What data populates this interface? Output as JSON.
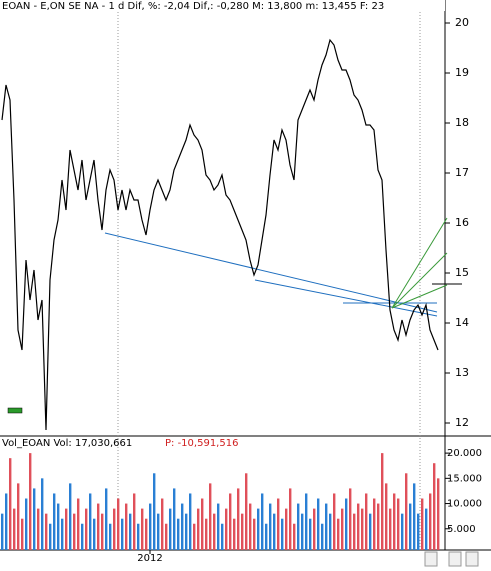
{
  "chart_data": [
    {
      "type": "line",
      "title": "EOAN - E,ON SE NA -  1 d Dif, %: -2,04 Dif,: -0,280 M: 13,800 m: 13,455 F: 23",
      "series": [
        {
          "color": "#000000",
          "values": [
            18.06,
            18.76,
            18.46,
            16.46,
            13.86,
            13.46,
            15.26,
            14.46,
            15.06,
            14.06,
            14.46,
            11.86,
            14.86,
            15.66,
            16.06,
            16.86,
            16.26,
            17.46,
            17.06,
            16.66,
            17.26,
            16.46,
            16.86,
            17.26,
            16.46,
            15.86,
            16.66,
            17.06,
            16.86,
            16.26,
            16.66,
            16.26,
            16.66,
            16.46,
            16.46,
            16.06,
            15.76,
            16.26,
            16.66,
            16.86,
            16.66,
            16.46,
            16.66,
            17.06,
            17.26,
            17.46,
            17.66,
            17.96,
            17.76,
            17.66,
            17.46,
            16.96,
            16.86,
            16.66,
            16.76,
            16.96,
            16.56,
            16.46,
            16.26,
            16.06,
            15.86,
            15.66,
            15.26,
            14.96,
            15.16,
            15.66,
            16.16,
            16.96,
            17.66,
            17.46,
            17.86,
            17.66,
            17.16,
            16.86,
            18.06,
            18.26,
            18.46,
            18.66,
            18.46,
            18.86,
            19.16,
            19.36,
            19.66,
            19.56,
            19.26,
            19.06,
            19.06,
            18.86,
            18.56,
            18.46,
            18.26,
            17.96,
            17.96,
            17.86,
            17.06,
            16.86,
            15.46,
            14.26,
            13.86,
            13.66,
            14.06,
            13.76,
            14.06,
            14.26,
            14.36,
            14.16,
            14.36,
            13.86,
            13.66,
            13.46
          ]
        }
      ],
      "ylim": [
        11.76,
        20.46
      ],
      "yticks": [
        12,
        13,
        14,
        15,
        16,
        17,
        18,
        19,
        20
      ]
    },
    {
      "type": "bar",
      "title": "Vol_EOAN Vol: 17,030,661",
      "subtitle": "P: -10,591,516",
      "categories": [
        null,
        null,
        null,
        null,
        null,
        null,
        null,
        null,
        null,
        null,
        null,
        null,
        null,
        null,
        null,
        null,
        null,
        null,
        null,
        null,
        null,
        null,
        null,
        null,
        null,
        null,
        null,
        null,
        null,
        null,
        null,
        null,
        null,
        null,
        null,
        null,
        null,
        "2012",
        null,
        null,
        null,
        null,
        null,
        null,
        null,
        null,
        null,
        null,
        null,
        null,
        null,
        null,
        null,
        null,
        null,
        null,
        null,
        null,
        null,
        null,
        null,
        null,
        null,
        null,
        null,
        null,
        null,
        null,
        null,
        null,
        null,
        null,
        null,
        null,
        null,
        null,
        null,
        null,
        null,
        null,
        null,
        null,
        null,
        null,
        null,
        null,
        null,
        null,
        null,
        null,
        null,
        null,
        null,
        null,
        null,
        null,
        null,
        null,
        null,
        null,
        null,
        null,
        null,
        null,
        null,
        null,
        null,
        null,
        null,
        null
      ],
      "values": [
        8000,
        12000,
        19000,
        9000,
        14000,
        7000,
        11000,
        20000,
        13000,
        9000,
        15000,
        8000,
        6000,
        12000,
        10000,
        7000,
        9000,
        14000,
        8000,
        11000,
        6000,
        9000,
        12000,
        7000,
        10000,
        8000,
        13000,
        6000,
        9000,
        11000,
        7000,
        10000,
        8000,
        12000,
        6000,
        9000,
        7000,
        10000,
        16000,
        8000,
        11000,
        6000,
        9000,
        13000,
        7000,
        10000,
        8000,
        12000,
        6000,
        9000,
        11000,
        7000,
        14000,
        8000,
        10000,
        6000,
        9000,
        12000,
        7000,
        13000,
        8000,
        16000,
        10000,
        7000,
        9000,
        12000,
        6000,
        10000,
        8000,
        11000,
        7000,
        9000,
        13000,
        6000,
        10000,
        8000,
        12000,
        7000,
        9000,
        11000,
        6000,
        10000,
        8000,
        12000,
        7000,
        9000,
        11000,
        13000,
        8000,
        10000,
        9000,
        12000,
        8000,
        11000,
        10000,
        20000,
        14000,
        9000,
        12000,
        11000,
        8000,
        16000,
        10000,
        14000,
        8000,
        11000,
        9000,
        12000,
        18000,
        15000
      ],
      "up_color": "#2a7fd4",
      "down_color": "#e0505a",
      "ylim": [
        0,
        22600
      ],
      "yticks": [
        {
          "value": 5000,
          "label": "5.000"
        },
        {
          "value": 10000,
          "label": "10.000"
        },
        {
          "value": 15000,
          "label": "15.000"
        },
        {
          "value": 20000,
          "label": "20.000"
        }
      ]
    }
  ]
}
